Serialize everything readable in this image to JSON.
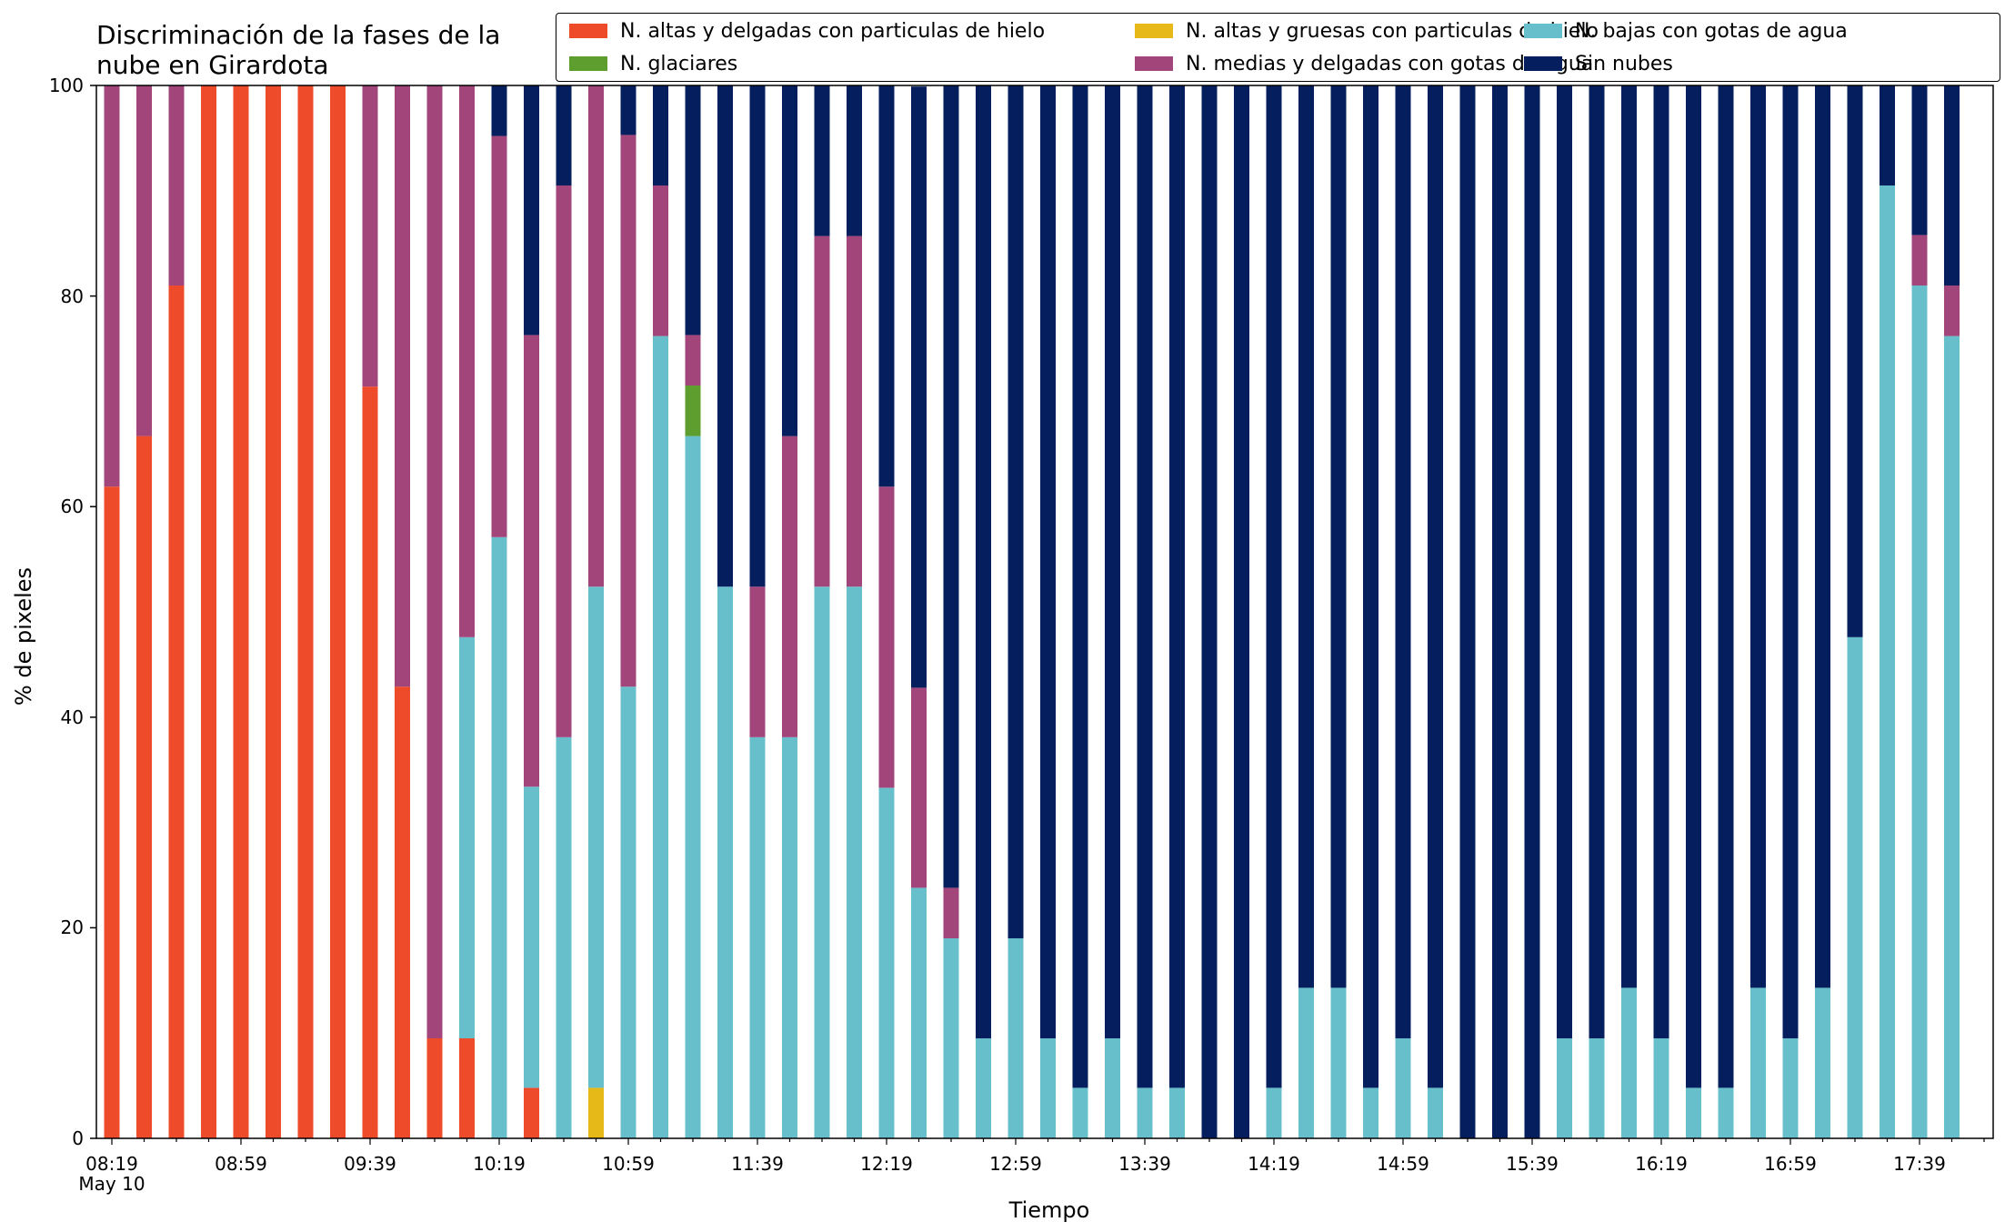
{
  "chart_data": {
    "type": "bar",
    "stacked": true,
    "title": "Discriminación de la fases de la\nnube en Girardota",
    "xlabel": "Tiempo",
    "ylabel": "% de pixeles",
    "ylim": [
      0,
      100
    ],
    "yticks": [
      "0",
      "20",
      "40",
      "60",
      "80",
      "100"
    ],
    "date_label": "May 10",
    "legend_position": "top-right",
    "legend_columns": 3,
    "colors": {
      "hielo_delgadas": "#ee4b2b",
      "hielo_gruesas": "#e6b919",
      "agua_bajas": "#67bfcb",
      "glaciares": "#5d9e2e",
      "agua_medias": "#a2457a",
      "sin_nubes": "#051e5e"
    },
    "x_tick_labels": [
      "08:19",
      "08:59",
      "09:39",
      "10:19",
      "10:59",
      "11:39",
      "12:19",
      "12:59",
      "13:39",
      "14:19",
      "14:59",
      "15:39",
      "16:19",
      "16:59",
      "17:39"
    ],
    "categories": [
      "08:19",
      "08:29",
      "08:39",
      "08:49",
      "08:59",
      "09:09",
      "09:19",
      "09:29",
      "09:39",
      "09:49",
      "09:59",
      "10:09",
      "10:19",
      "10:29",
      "10:39",
      "10:49",
      "10:59",
      "11:09",
      "11:19",
      "11:29",
      "11:39",
      "11:49",
      "11:59",
      "12:09",
      "12:19",
      "12:29",
      "12:39",
      "12:49",
      "12:59",
      "13:09",
      "13:19",
      "13:29",
      "13:39",
      "13:49",
      "13:59",
      "14:09",
      "14:19",
      "14:29",
      "14:39",
      "14:49",
      "14:59",
      "15:09",
      "15:19",
      "15:29",
      "15:39",
      "15:49",
      "15:59",
      "16:09",
      "16:19",
      "16:29",
      "16:39",
      "16:49",
      "16:59",
      "17:09",
      "17:19",
      "17:29",
      "17:39",
      "17:49"
    ],
    "series": [
      {
        "name": "N. altas y delgadas con particulas de hielo",
        "key": "hielo_delgadas",
        "values": [
          61.9,
          66.7,
          81,
          100,
          100,
          100,
          100,
          100,
          71.4,
          42.9,
          9.5,
          9.5,
          0,
          4.8,
          0,
          0,
          0,
          0,
          0,
          0,
          0,
          0,
          0,
          0,
          0,
          0,
          0,
          0,
          0,
          0,
          0,
          0,
          0,
          0,
          0,
          0,
          0,
          0,
          0,
          0,
          0,
          0,
          0,
          0,
          0,
          0,
          0,
          0,
          0,
          0,
          0,
          0,
          0,
          0,
          0,
          0,
          0,
          0
        ]
      },
      {
        "name": "N. altas y gruesas con particulas de hielo",
        "key": "hielo_gruesas",
        "values": [
          0,
          0,
          0,
          0,
          0,
          0,
          0,
          0,
          0,
          0,
          0,
          0,
          0,
          0,
          0,
          4.8,
          0,
          0,
          0,
          0,
          0,
          0,
          0,
          0,
          0,
          0,
          0,
          0,
          0,
          0,
          0,
          0,
          0,
          0,
          0,
          0,
          0,
          0,
          0,
          0,
          0,
          0,
          0,
          0,
          0,
          0,
          0,
          0,
          0,
          0,
          0,
          0,
          0,
          0,
          0,
          0,
          0,
          0
        ]
      },
      {
        "name": "N. bajas con gotas de agua",
        "key": "agua_bajas",
        "values": [
          0,
          0,
          0,
          0,
          0,
          0,
          0,
          0,
          0,
          0,
          0,
          38.1,
          57.1,
          28.6,
          38.1,
          47.6,
          42.9,
          76.2,
          66.7,
          52.4,
          38.1,
          38.1,
          52.4,
          52.4,
          33.3,
          23.8,
          19,
          9.5,
          19,
          9.5,
          4.8,
          9.5,
          4.8,
          4.8,
          0,
          0,
          4.8,
          14.3,
          14.3,
          4.8,
          9.5,
          4.8,
          0,
          0,
          0,
          9.5,
          9.5,
          14.3,
          9.5,
          4.8,
          4.8,
          14.3,
          9.5,
          14.3,
          47.6,
          90.5,
          81,
          76.2
        ]
      },
      {
        "name": "N. glaciares",
        "key": "glaciares",
        "values": [
          0,
          0,
          0,
          0,
          0,
          0,
          0,
          0,
          0,
          0,
          0,
          0,
          0,
          0,
          0,
          0,
          0,
          0,
          4.8,
          0,
          0,
          0,
          0,
          0,
          0,
          0,
          0,
          0,
          0,
          0,
          0,
          0,
          0,
          0,
          0,
          0,
          0,
          0,
          0,
          0,
          0,
          0,
          0,
          0,
          0,
          0,
          0,
          0,
          0,
          0,
          0,
          0,
          0,
          0,
          0,
          0,
          0,
          0
        ]
      },
      {
        "name": "N. medias y delgadas con gotas de agua",
        "key": "agua_medias",
        "values": [
          38.1,
          33.3,
          19,
          0,
          0,
          0,
          0,
          0,
          28.6,
          57.1,
          90.5,
          52.4,
          38.1,
          42.9,
          52.4,
          47.6,
          52.4,
          14.3,
          4.8,
          0,
          14.3,
          28.6,
          33.3,
          33.3,
          28.6,
          19,
          4.8,
          0,
          0,
          0,
          0,
          0,
          0,
          0,
          0,
          0,
          0,
          0,
          0,
          0,
          0,
          0,
          0,
          0,
          0,
          0,
          0,
          0,
          0,
          0,
          0,
          0,
          0,
          0,
          0,
          0,
          4.8,
          4.8
        ]
      },
      {
        "name": "Sin nubes",
        "key": "sin_nubes",
        "values": [
          0,
          0,
          0,
          0,
          0,
          0,
          0,
          0,
          0,
          0,
          0,
          0,
          4.8,
          23.8,
          9.5,
          0,
          4.8,
          9.5,
          23.8,
          47.6,
          47.6,
          33.3,
          14.3,
          14.3,
          38.1,
          57.1,
          76.2,
          90.5,
          81,
          90.5,
          95.2,
          90.5,
          95.2,
          95.2,
          100,
          100,
          95.2,
          85.7,
          85.7,
          95.2,
          90.5,
          95.2,
          100,
          100,
          100,
          90.5,
          90.5,
          85.7,
          90.5,
          95.2,
          95.2,
          85.7,
          90.5,
          85.7,
          52.4,
          9.5,
          14.3,
          19
        ]
      }
    ]
  }
}
